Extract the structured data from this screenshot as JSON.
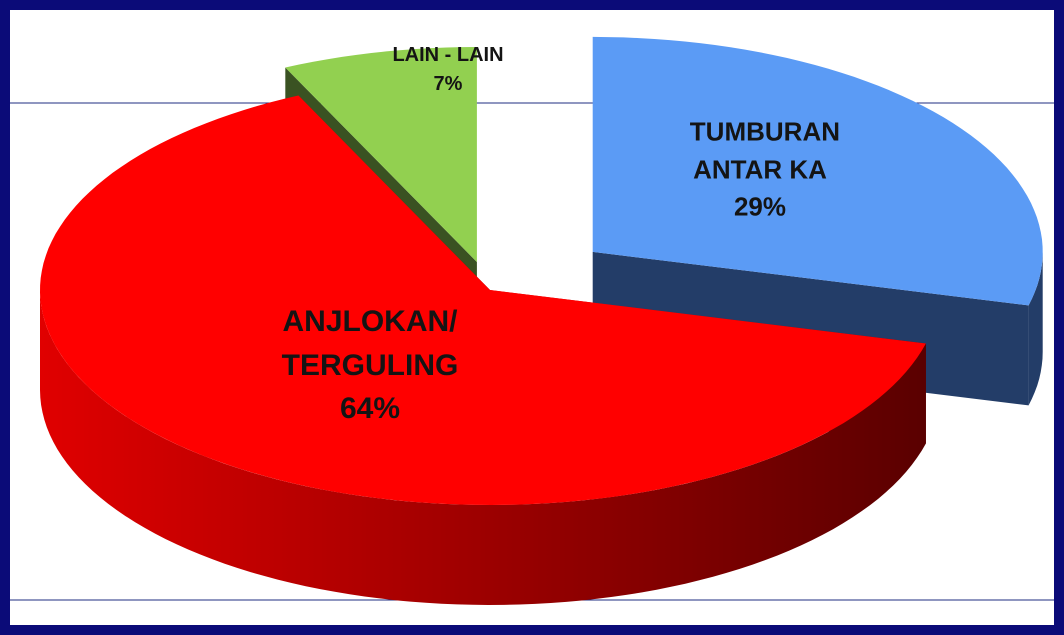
{
  "chart_data": {
    "type": "pie",
    "categories": [
      "TUMBURAN ANTAR KA",
      "ANJLOKAN/ TERGULING",
      "LAIN - LAIN"
    ],
    "values": [
      29,
      64,
      7
    ],
    "value_labels": [
      "29%",
      "64%",
      "7%"
    ],
    "colors": [
      "#5b9bf5",
      "#ff0000",
      "#92d050"
    ]
  }
}
